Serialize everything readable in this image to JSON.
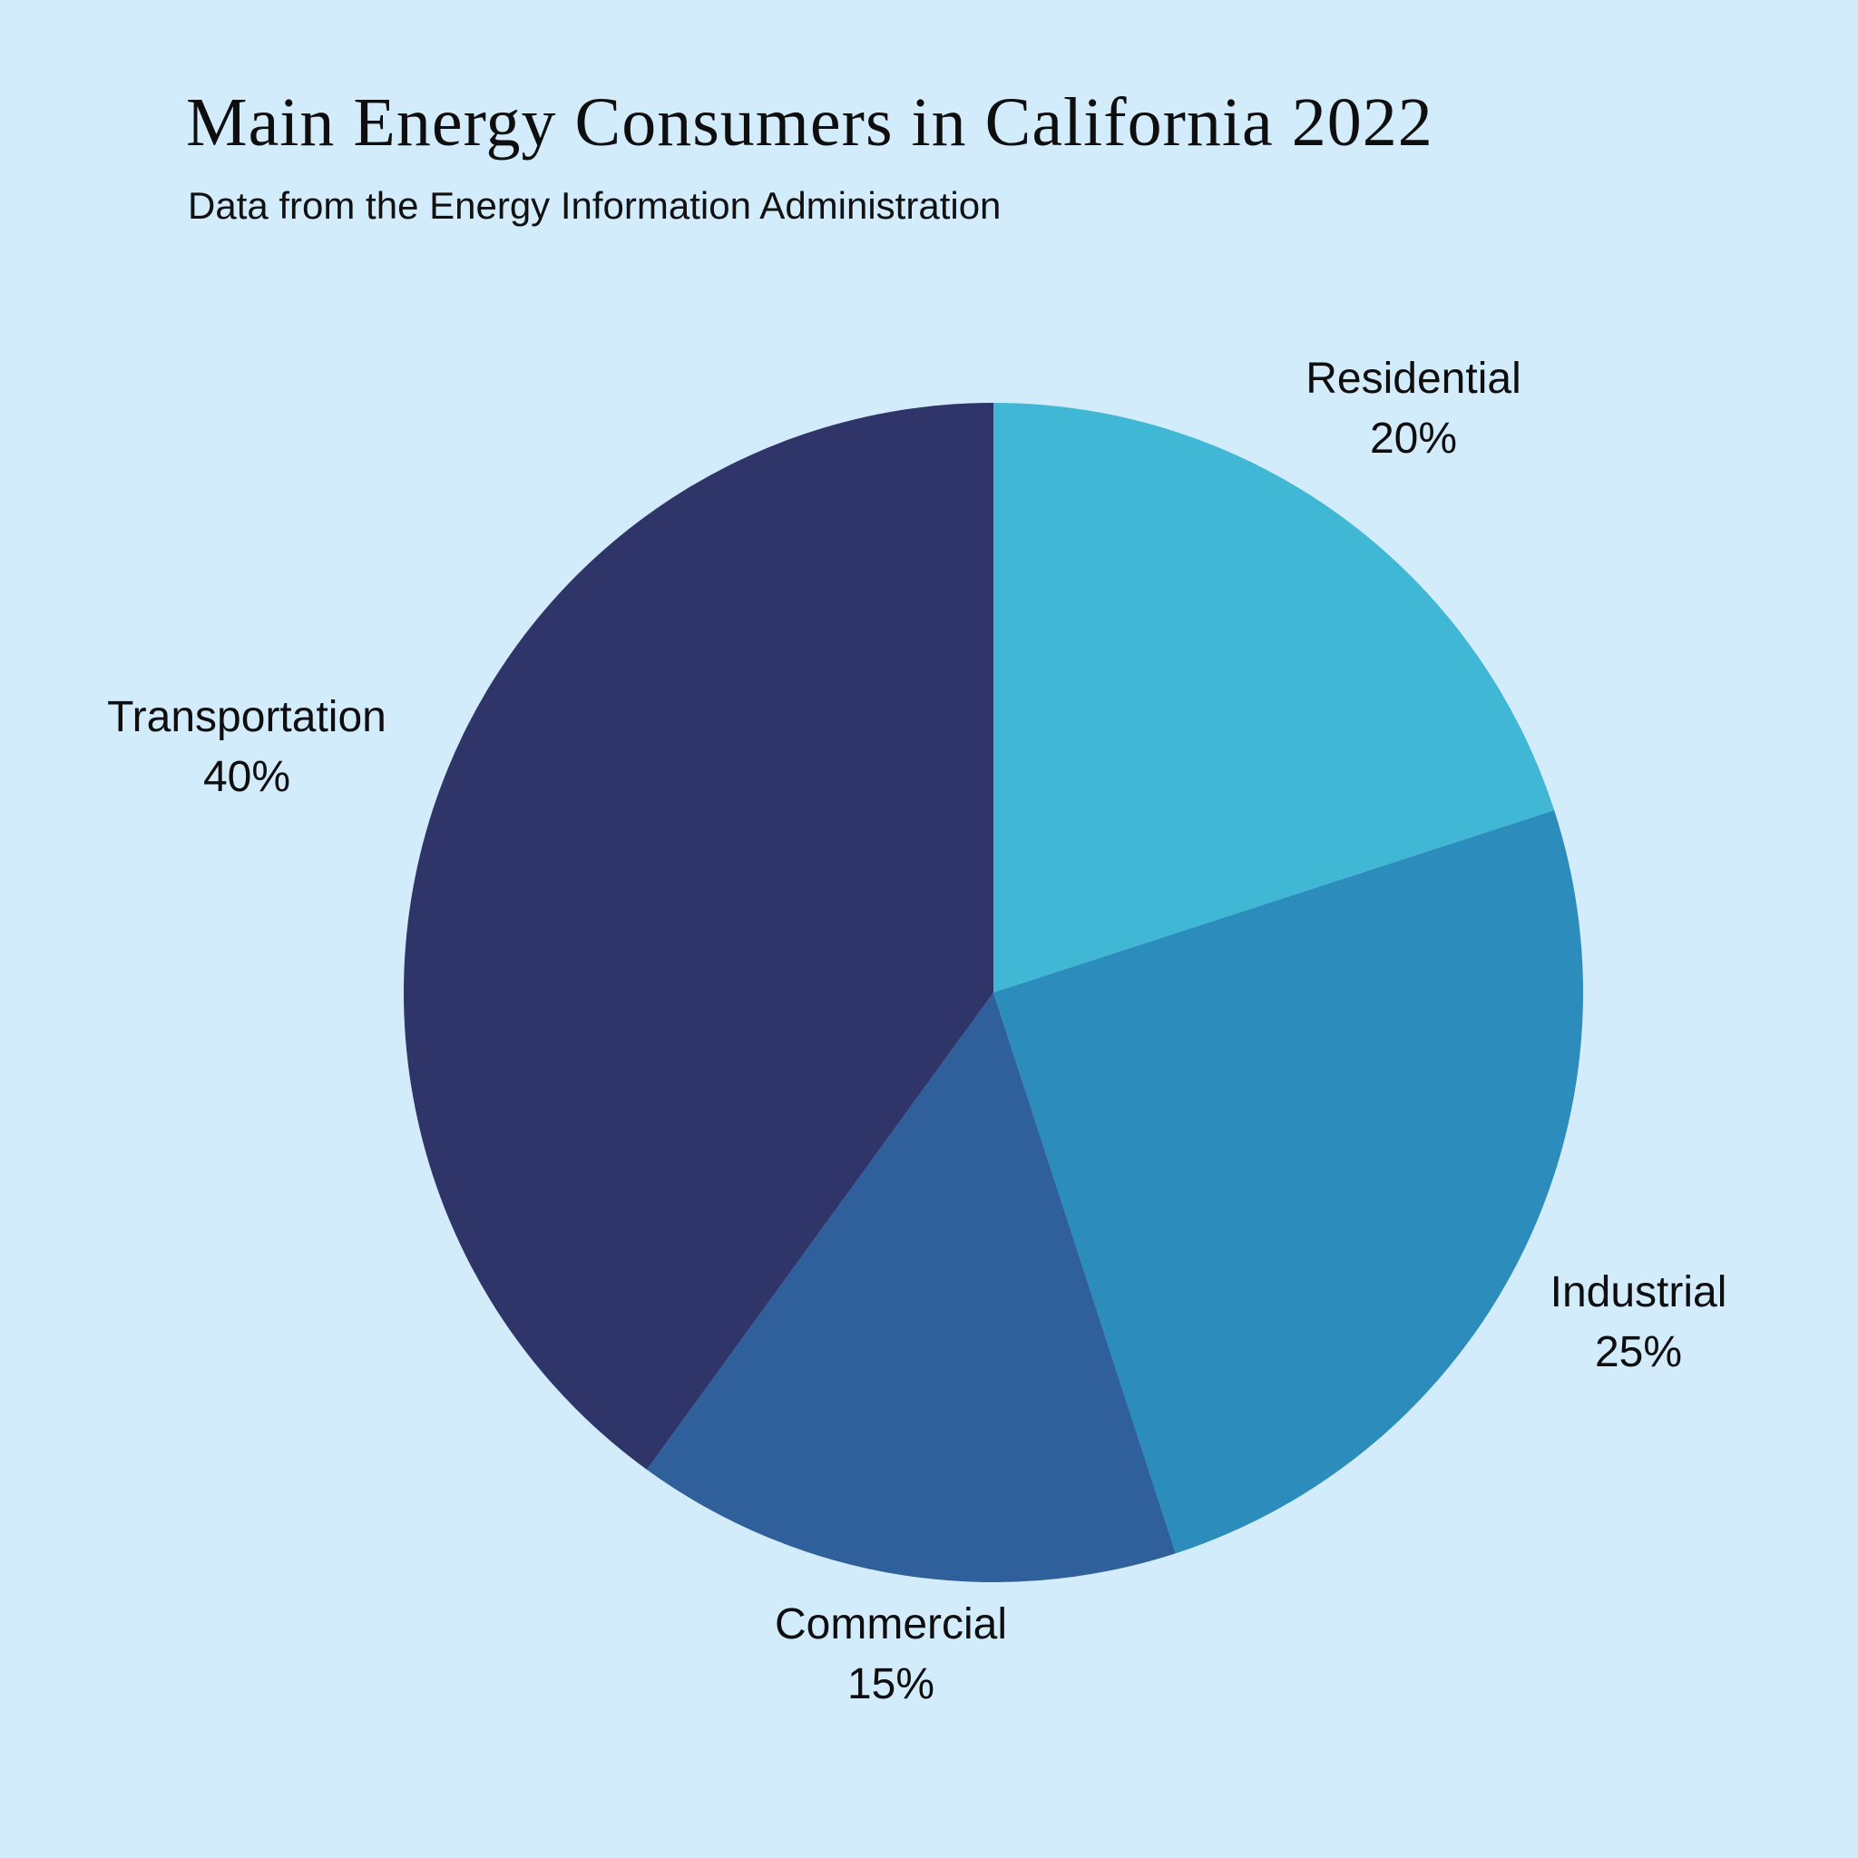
{
  "header": {
    "title": "Main Energy Consumers in California 2022",
    "subtitle": "Data from the Energy Information Administration"
  },
  "colors": {
    "background": "#d3ecfc",
    "text": "#0e0e0e"
  },
  "chart_data": {
    "type": "pie",
    "title": "Main Energy Consumers in California 2022",
    "subtitle": "Data from the Energy Information Administration",
    "start_angle_deg": -90,
    "direction": "clockwise",
    "legend_position": "outside-labels",
    "slices": [
      {
        "label": "Residential",
        "value": 20,
        "pct_label": "20%",
        "color": "#41b7d6"
      },
      {
        "label": "Industrial",
        "value": 25,
        "pct_label": "25%",
        "color": "#2c8cbc"
      },
      {
        "label": "Commercial",
        "value": 15,
        "pct_label": "15%",
        "color": "#30609c"
      },
      {
        "label": "Transportation",
        "value": 40,
        "pct_label": "40%",
        "color": "#2f3469"
      }
    ]
  }
}
